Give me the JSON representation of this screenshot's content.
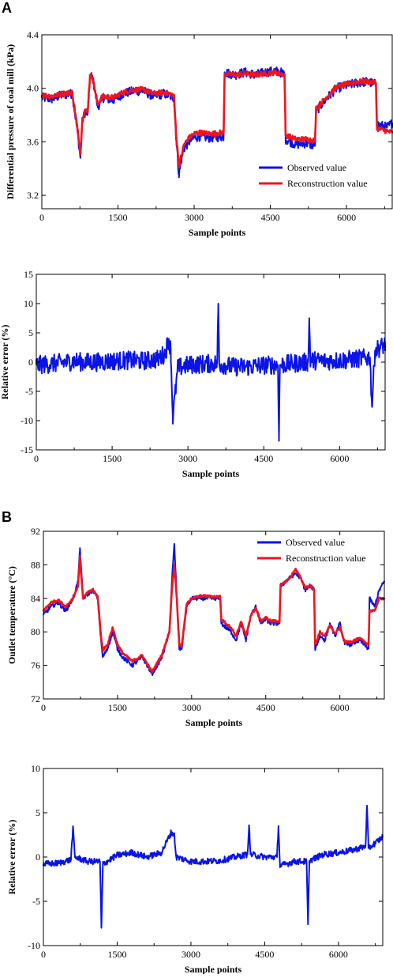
{
  "figure": {
    "panel_a_label": "A",
    "panel_b_label": "B"
  },
  "colors": {
    "observed": "#0a14e6",
    "reconstruction": "#f0141e",
    "axis": "#000000"
  },
  "chart_data": [
    {
      "type": "line",
      "panel": "A",
      "xlabel": "Sample points",
      "ylabel": "Differential pressure of coal mill (kPa)",
      "xlim": [
        0,
        6900
      ],
      "ylim": [
        3.1,
        4.4
      ],
      "xticks": [
        0,
        1500,
        3000,
        4500,
        6000
      ],
      "yticks": [
        3.2,
        3.6,
        4.0,
        4.4
      ],
      "ytick_labels": [
        "3.2",
        "3.6",
        "4.0",
        "4.4"
      ],
      "legend": "bottom-right",
      "grid": false,
      "noise": 0.035,
      "series": [
        {
          "name": "Observed value",
          "color": "#0a14e6",
          "x": [
            0,
            200,
            400,
            600,
            700,
            760,
            800,
            850,
            900,
            950,
            1000,
            1100,
            1200,
            1400,
            1600,
            1800,
            2000,
            2200,
            2400,
            2600,
            2650,
            2700,
            2750,
            2800,
            2900,
            3000,
            3100,
            3300,
            3580,
            3600,
            3800,
            4000,
            4200,
            4400,
            4600,
            4780,
            4800,
            5000,
            5200,
            5380,
            5400,
            5600,
            5800,
            6000,
            6200,
            6400,
            6580,
            6600,
            6800,
            6900
          ],
          "values": [
            3.93,
            3.92,
            3.95,
            3.96,
            3.68,
            3.48,
            3.76,
            3.82,
            3.8,
            4.1,
            4.08,
            3.86,
            3.93,
            3.91,
            3.96,
            3.98,
            3.98,
            3.94,
            3.96,
            3.93,
            3.6,
            3.35,
            3.47,
            3.55,
            3.6,
            3.63,
            3.64,
            3.63,
            3.64,
            4.12,
            4.1,
            4.12,
            4.1,
            4.12,
            4.13,
            4.11,
            3.62,
            3.58,
            3.59,
            3.57,
            3.83,
            3.92,
            4.0,
            4.02,
            4.04,
            4.05,
            4.03,
            3.73,
            3.71,
            3.74
          ]
        },
        {
          "name": "Reconstruction value",
          "color": "#f0141e",
          "x": [
            0,
            200,
            400,
            600,
            700,
            760,
            800,
            850,
            900,
            950,
            1000,
            1100,
            1200,
            1400,
            1600,
            1800,
            2000,
            2200,
            2400,
            2600,
            2650,
            2700,
            2750,
            2800,
            2900,
            3000,
            3100,
            3300,
            3580,
            3600,
            3800,
            4000,
            4200,
            4400,
            4600,
            4780,
            4800,
            5000,
            5200,
            5380,
            5400,
            5600,
            5800,
            6000,
            6200,
            6400,
            6580,
            6600,
            6800,
            6900
          ],
          "values": [
            3.95,
            3.94,
            3.96,
            3.97,
            3.7,
            3.52,
            3.78,
            3.84,
            3.82,
            4.1,
            4.08,
            3.88,
            3.94,
            3.93,
            3.97,
            3.99,
            3.99,
            3.96,
            3.97,
            3.95,
            3.63,
            3.42,
            3.5,
            3.58,
            3.63,
            3.66,
            3.67,
            3.66,
            3.67,
            4.11,
            4.1,
            4.11,
            4.1,
            4.11,
            4.12,
            4.1,
            3.65,
            3.62,
            3.62,
            3.61,
            3.85,
            3.93,
            4.01,
            4.03,
            4.05,
            4.05,
            4.04,
            3.7,
            3.68,
            3.67
          ]
        }
      ]
    },
    {
      "type": "line",
      "panel": "A",
      "xlabel": "Sample points",
      "ylabel": "Relative error (%)",
      "xlim": [
        0,
        6900
      ],
      "ylim": [
        -15,
        15
      ],
      "xticks": [
        0,
        1500,
        3000,
        4500,
        6000
      ],
      "yticks": [
        -15,
        -10,
        -5,
        0,
        5,
        10,
        15
      ],
      "ytick_labels": [
        "-15",
        "-10",
        "-5",
        "0",
        "5",
        "10",
        "15"
      ],
      "grid": false,
      "noise": 1.6,
      "series": [
        {
          "color": "#0a14e6",
          "x": [
            0,
            300,
            600,
            760,
            900,
            1200,
            1500,
            1800,
            2100,
            2400,
            2550,
            2620,
            2660,
            2700,
            2800,
            3000,
            3300,
            3580,
            3600,
            3620,
            3900,
            4200,
            4500,
            4780,
            4800,
            4820,
            5100,
            5380,
            5400,
            5420,
            5700,
            6000,
            6300,
            6600,
            6640,
            6700,
            6900
          ],
          "values": [
            -0.5,
            -0.3,
            0.0,
            0.2,
            0.0,
            0.0,
            0.2,
            0.3,
            0.2,
            0.5,
            1.5,
            4.0,
            2.0,
            -9.5,
            -1.0,
            -0.5,
            -0.3,
            -0.2,
            10.0,
            -0.3,
            -0.8,
            -0.8,
            -0.5,
            -0.5,
            -12.5,
            -0.5,
            -0.2,
            0.0,
            7.5,
            0.3,
            0.2,
            0.3,
            0.5,
            0.8,
            -7.5,
            2.0,
            3.0
          ]
        }
      ]
    },
    {
      "type": "line",
      "panel": "B",
      "xlabel": "Sample points",
      "ylabel": "Outlet temperature (°C)",
      "xlim": [
        0,
        6900
      ],
      "ylim": [
        72,
        92
      ],
      "xticks": [
        0,
        1500,
        3000,
        4500,
        6000
      ],
      "yticks": [
        72,
        76,
        80,
        84,
        88,
        92
      ],
      "ytick_labels": [
        "72",
        "76",
        "80",
        "84",
        "88",
        "92"
      ],
      "legend": "top-right",
      "grid": false,
      "noise": 0.25,
      "series": [
        {
          "name": "Observed value",
          "color": "#0a14e6",
          "x": [
            0,
            150,
            300,
            450,
            600,
            700,
            740,
            800,
            900,
            1000,
            1100,
            1150,
            1200,
            1300,
            1400,
            1500,
            1600,
            1800,
            2000,
            2200,
            2400,
            2550,
            2600,
            2650,
            2700,
            2750,
            2800,
            2900,
            3000,
            3200,
            3400,
            3580,
            3600,
            3800,
            3900,
            4000,
            4100,
            4200,
            4300,
            4400,
            4500,
            4600,
            4780,
            4800,
            5000,
            5100,
            5200,
            5300,
            5400,
            5480,
            5500,
            5600,
            5700,
            5800,
            5900,
            6000,
            6100,
            6200,
            6400,
            6580,
            6600,
            6700,
            6800,
            6900
          ],
          "values": [
            82,
            83,
            83.5,
            82.5,
            84,
            86,
            90,
            84,
            84.5,
            85,
            84,
            80,
            77,
            78,
            80,
            78,
            77,
            76,
            77,
            75,
            77,
            80,
            86,
            90.5,
            84,
            78,
            78,
            83,
            84,
            84,
            84,
            84,
            81,
            80,
            79,
            81,
            79,
            82,
            83,
            81,
            81.5,
            81,
            81,
            85.5,
            86.5,
            87,
            86.5,
            85,
            85.5,
            85,
            78,
            79.5,
            79,
            81,
            79.5,
            81,
            78.5,
            78.5,
            79,
            78,
            84,
            83,
            85,
            86
          ]
        },
        {
          "name": "Reconstruction value",
          "color": "#f0141e",
          "x": [
            0,
            150,
            300,
            450,
            600,
            700,
            740,
            800,
            900,
            1000,
            1100,
            1150,
            1200,
            1300,
            1400,
            1500,
            1600,
            1800,
            2000,
            2200,
            2400,
            2550,
            2600,
            2650,
            2700,
            2750,
            2800,
            2900,
            3000,
            3200,
            3400,
            3580,
            3600,
            3800,
            3900,
            4000,
            4100,
            4200,
            4300,
            4400,
            4500,
            4600,
            4780,
            4800,
            5000,
            5100,
            5200,
            5300,
            5400,
            5480,
            5500,
            5600,
            5700,
            5800,
            5900,
            6000,
            6100,
            6200,
            6400,
            6580,
            6600,
            6700,
            6800,
            6900
          ],
          "values": [
            82.5,
            83.5,
            83.8,
            83,
            84,
            85.5,
            89,
            84,
            84.7,
            85,
            84.2,
            80.5,
            77.8,
            78.5,
            80.5,
            78.5,
            77.5,
            76.5,
            77.2,
            75.2,
            77.3,
            80,
            85,
            88,
            84,
            78.5,
            78.3,
            83.3,
            84,
            84.3,
            84.2,
            84.2,
            81.5,
            80.5,
            79.5,
            81.2,
            79.5,
            82,
            82.8,
            81.3,
            81.7,
            81.3,
            81.3,
            85.5,
            86.5,
            87.5,
            86.5,
            85.3,
            85.5,
            85,
            78.5,
            80,
            79.5,
            80.8,
            79.8,
            80.5,
            78.8,
            78.8,
            79.2,
            78.5,
            82.5,
            82.5,
            84,
            84
          ]
        }
      ]
    },
    {
      "type": "line",
      "panel": "B",
      "xlabel": "Sample points",
      "ylabel": "Relative error (%)",
      "xlim": [
        0,
        6900
      ],
      "ylim": [
        -10,
        10
      ],
      "xticks": [
        0,
        1500,
        3000,
        4500,
        6000
      ],
      "yticks": [
        -10,
        -5,
        0,
        5,
        10
      ],
      "ytick_labels": [
        "-10",
        "-5",
        "0",
        "5",
        "10"
      ],
      "grid": false,
      "noise": 0.35,
      "series": [
        {
          "color": "#0a14e6",
          "x": [
            0,
            300,
            560,
            600,
            640,
            900,
            1150,
            1180,
            1210,
            1500,
            1800,
            2100,
            2400,
            2600,
            2660,
            2700,
            3000,
            3300,
            3600,
            3900,
            4150,
            4180,
            4210,
            4500,
            4750,
            4780,
            4810,
            5100,
            5350,
            5380,
            5410,
            5700,
            6000,
            6300,
            6550,
            6580,
            6610,
            6800,
            6900
          ],
          "values": [
            -0.8,
            -0.7,
            -0.3,
            3.3,
            0.0,
            -0.5,
            -0.5,
            -8.0,
            -0.8,
            0.2,
            0.5,
            0.0,
            0.5,
            2.8,
            2.5,
            0.0,
            -0.5,
            -0.5,
            -0.4,
            0.0,
            0.3,
            3.6,
            0.3,
            0.0,
            0.0,
            3.5,
            -1.0,
            -0.5,
            -0.5,
            -7.6,
            -0.4,
            0.3,
            0.5,
            0.8,
            1.2,
            5.8,
            1.0,
            1.8,
            2.3
          ]
        }
      ]
    }
  ]
}
